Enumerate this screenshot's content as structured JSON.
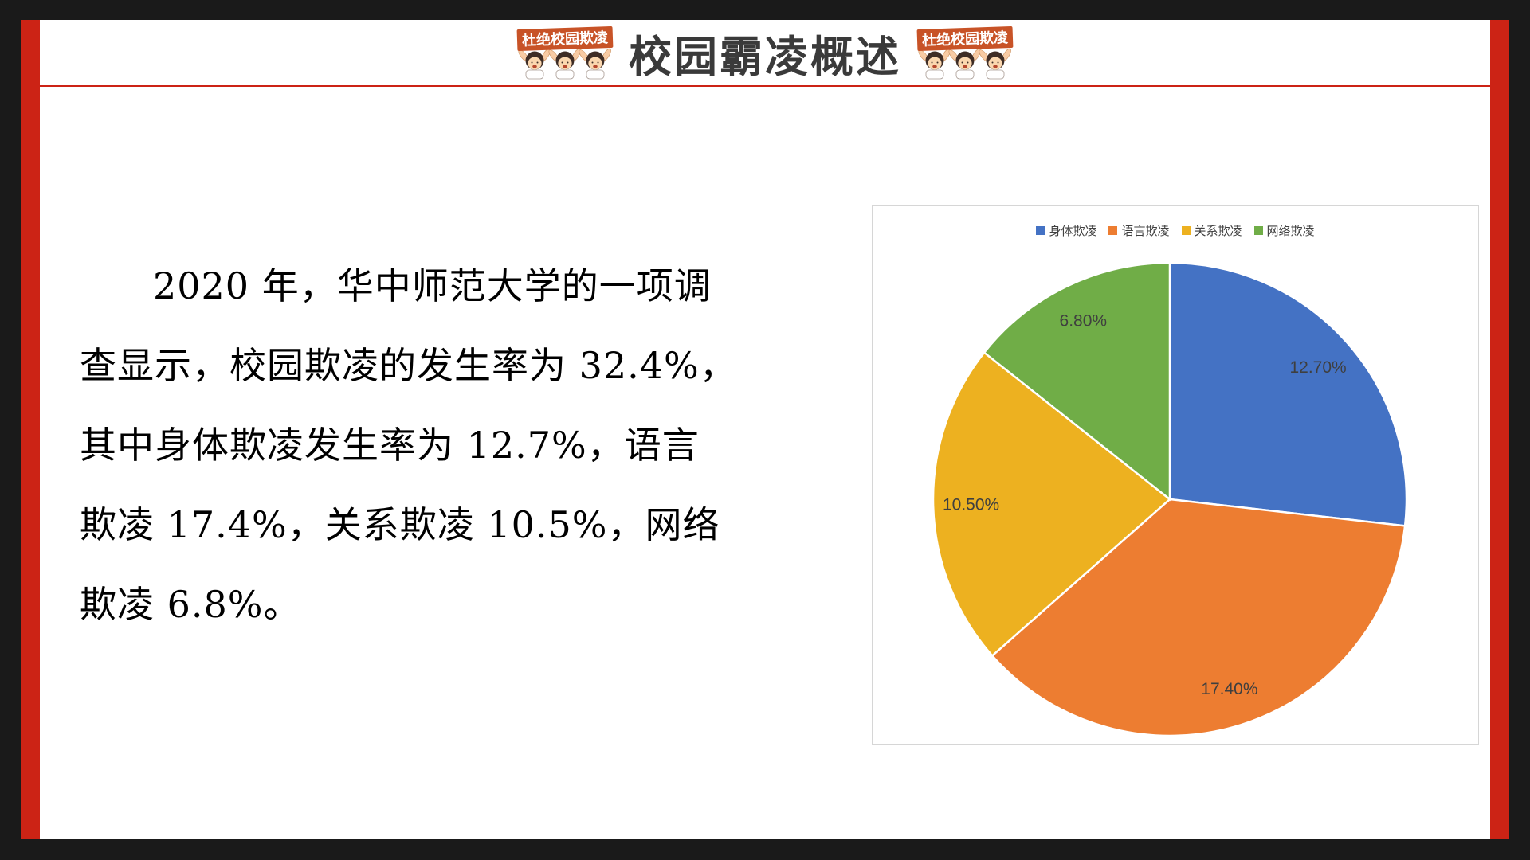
{
  "page": {
    "background_color": "#1A1A1A",
    "frame_color": "#CC2315",
    "slide_color": "#FFFFFF"
  },
  "header": {
    "title": "校园霸凌概述",
    "badge_text": "杜绝校园欺凌"
  },
  "body": {
    "paragraph_lines": {
      "0": "2020 年，华中师范大学的一项调",
      "1": "查显示，校园欺凌的发生率为 32.4%，",
      "2": "其中身体欺凌发生率为 12.7%，语言",
      "3": "欺凌 17.4%，关系欺凌 10.5%，网络",
      "4": "欺凌 6.8%。"
    }
  },
  "chart_data": {
    "type": "pie",
    "title": "",
    "legend_position": "top",
    "start_angle_deg": 0,
    "direction": "clockwise",
    "overall_rate_mentioned_in_text": "32.4%",
    "series": [
      {
        "name": "身体欺凌",
        "value": 12.7,
        "label": "12.70%",
        "color": "#4472C4"
      },
      {
        "name": "语言欺凌",
        "value": 17.4,
        "label": "17.40%",
        "color": "#ED7D31"
      },
      {
        "name": "关系欺凌",
        "value": 10.5,
        "label": "10.50%",
        "color": "#EDB120"
      },
      {
        "name": "网络欺凌",
        "value": 6.8,
        "label": "6.80%",
        "color": "#70AD47"
      }
    ]
  }
}
